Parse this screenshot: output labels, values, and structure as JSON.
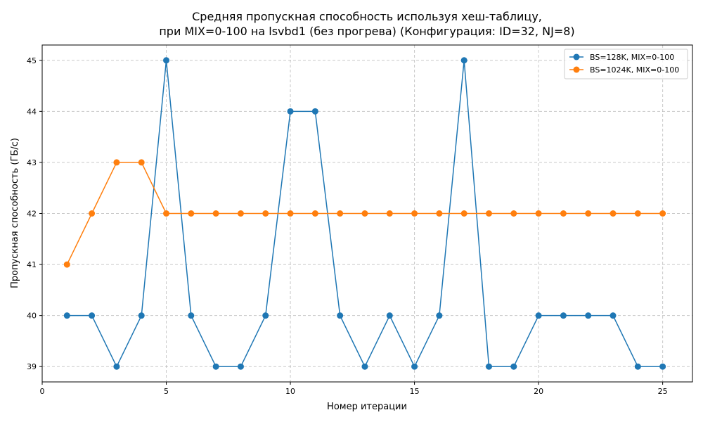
{
  "chart_data": {
    "type": "line",
    "title": "Средняя пропускная способность используя хеш-таблицу,",
    "subtitle": "при MIX=0-100 на lsvbd1 (без прогрева) (Конфигурация: ID=32, NJ=8)",
    "xlabel": "Номер итерации",
    "ylabel": "Пропускная способность (ГБ/с)",
    "xlim": [
      0,
      26.2
    ],
    "ylim": [
      38.7,
      45.3
    ],
    "xticks": [
      0,
      5,
      10,
      15,
      20,
      25
    ],
    "yticks": [
      39,
      40,
      41,
      42,
      43,
      44,
      45
    ],
    "grid": true,
    "legend_position": "top-right",
    "x": [
      1,
      2,
      3,
      4,
      5,
      6,
      7,
      8,
      9,
      10,
      11,
      12,
      13,
      14,
      15,
      16,
      17,
      18,
      19,
      20,
      21,
      22,
      23,
      24,
      25
    ],
    "series": [
      {
        "name": "BS=128K, MIX=0-100",
        "color": "#1f77b4",
        "values": [
          40,
          40,
          39,
          40,
          45,
          40,
          39,
          39,
          40,
          44,
          44,
          40,
          39,
          40,
          39,
          40,
          45,
          39,
          39,
          40,
          40,
          40,
          40,
          39,
          39
        ]
      },
      {
        "name": "BS=1024K, MIX=0-100",
        "color": "#ff7f0e",
        "values": [
          41,
          42,
          43,
          43,
          42,
          42,
          42,
          42,
          42,
          42,
          42,
          42,
          42,
          42,
          42,
          42,
          42,
          42,
          42,
          42,
          42,
          42,
          42,
          42,
          42
        ]
      }
    ]
  }
}
